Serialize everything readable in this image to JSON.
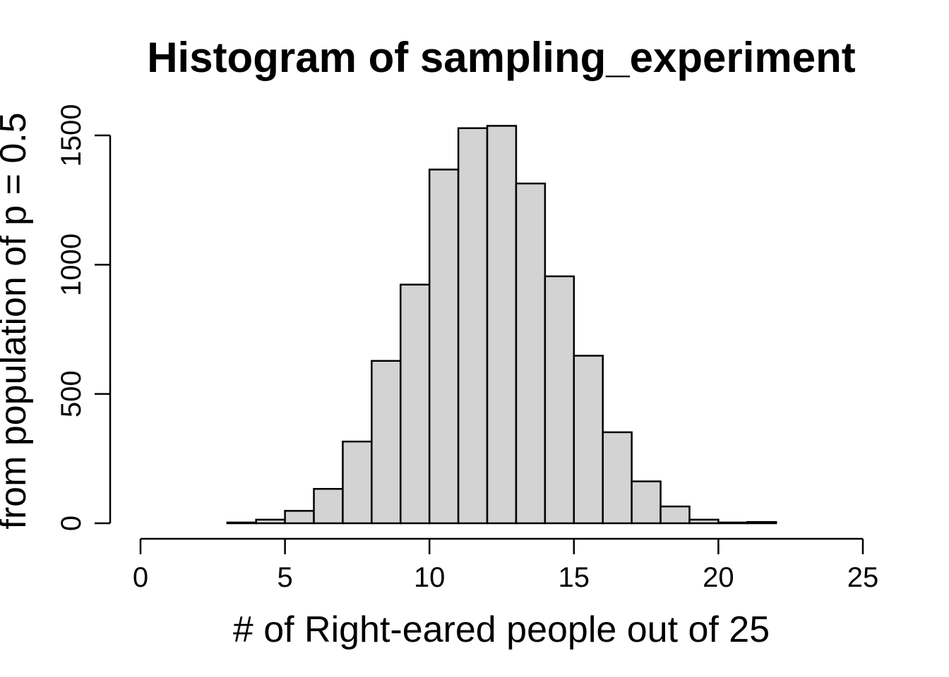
{
  "chart_data": {
    "type": "bar",
    "title": "Histogram of sampling_experiment",
    "xlabel": "# of Right-eared people out of 25",
    "ylabel": "from population of p = 0.5",
    "xlim": [
      0,
      25
    ],
    "ylim": [
      0,
      1500
    ],
    "x_ticks": [
      0,
      5,
      10,
      15,
      20,
      25
    ],
    "y_ticks": [
      0,
      500,
      1000,
      1500
    ],
    "bins": [
      {
        "start": 0,
        "end": 1,
        "count": 0
      },
      {
        "start": 1,
        "end": 2,
        "count": 0
      },
      {
        "start": 2,
        "end": 3,
        "count": 0
      },
      {
        "start": 3,
        "end": 4,
        "count": 3
      },
      {
        "start": 4,
        "end": 5,
        "count": 14
      },
      {
        "start": 5,
        "end": 6,
        "count": 48
      },
      {
        "start": 6,
        "end": 7,
        "count": 133
      },
      {
        "start": 7,
        "end": 8,
        "count": 316
      },
      {
        "start": 8,
        "end": 9,
        "count": 628
      },
      {
        "start": 9,
        "end": 10,
        "count": 923
      },
      {
        "start": 10,
        "end": 11,
        "count": 1368
      },
      {
        "start": 11,
        "end": 12,
        "count": 1528
      },
      {
        "start": 12,
        "end": 13,
        "count": 1537
      },
      {
        "start": 13,
        "end": 14,
        "count": 1314
      },
      {
        "start": 14,
        "end": 15,
        "count": 955
      },
      {
        "start": 15,
        "end": 16,
        "count": 648
      },
      {
        "start": 16,
        "end": 17,
        "count": 352
      },
      {
        "start": 17,
        "end": 18,
        "count": 162
      },
      {
        "start": 18,
        "end": 19,
        "count": 65
      },
      {
        "start": 19,
        "end": 20,
        "count": 14
      },
      {
        "start": 20,
        "end": 21,
        "count": 3
      },
      {
        "start": 21,
        "end": 22,
        "count": 5
      },
      {
        "start": 22,
        "end": 23,
        "count": 0
      },
      {
        "start": 23,
        "end": 24,
        "count": 0
      },
      {
        "start": 24,
        "end": 25,
        "count": 0
      }
    ],
    "grid": false,
    "legend": "none",
    "colors": {
      "bar_fill": "#d3d3d3",
      "bar_stroke": "#000000"
    }
  }
}
